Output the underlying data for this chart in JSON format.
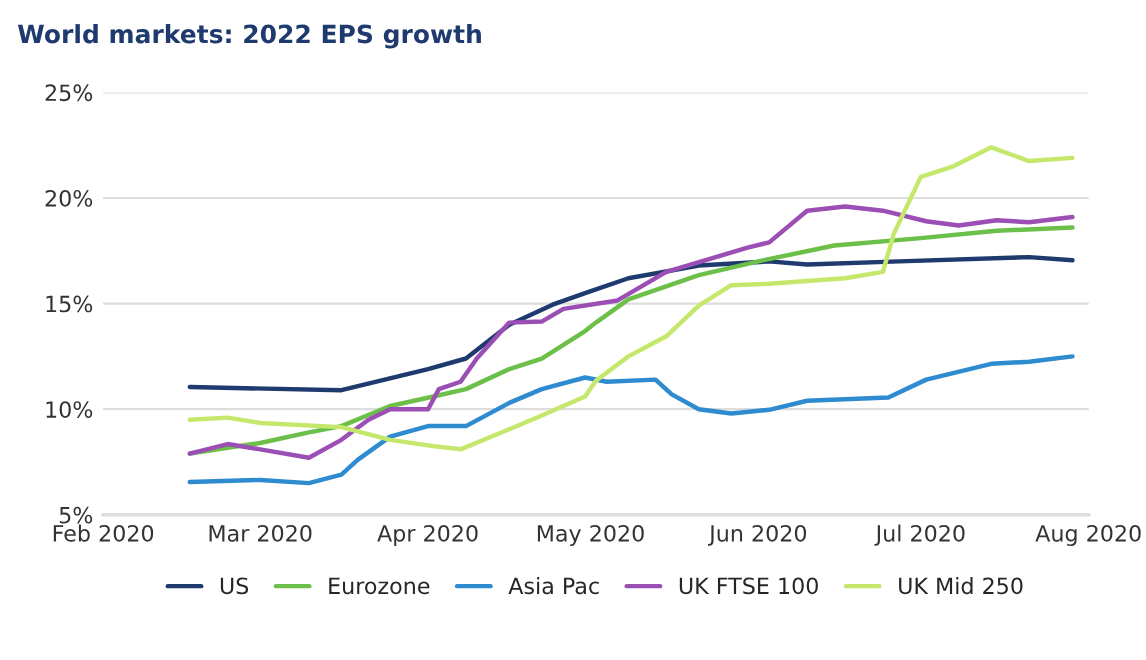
{
  "chart_data": {
    "type": "line",
    "title": "World markets: 2022 EPS growth",
    "xlim": [
      "2020-02-01",
      "2020-08-01"
    ],
    "xticks": [
      {
        "value": "2020-02-01",
        "label": "Feb 2020"
      },
      {
        "value": "2020-03-01",
        "label": "Mar 2020"
      },
      {
        "value": "2020-04-01",
        "label": "Apr 2020"
      },
      {
        "value": "2020-05-01",
        "label": "May 2020"
      },
      {
        "value": "2020-06-01",
        "label": "Jun 2020"
      },
      {
        "value": "2020-07-01",
        "label": "Jul 2020"
      },
      {
        "value": "2020-08-01",
        "label": "Aug 2020"
      }
    ],
    "ylim": [
      5,
      25
    ],
    "yticks": [
      {
        "value": 5,
        "label": "5%"
      },
      {
        "value": 10,
        "label": "10%"
      },
      {
        "value": 15,
        "label": "15%"
      },
      {
        "value": 20,
        "label": "20%"
      },
      {
        "value": 25,
        "label": "25%"
      }
    ],
    "grid": "y",
    "legend": "bottom",
    "marker": "none",
    "line_style": "solid",
    "series": [
      {
        "name": "US",
        "color": "#1f3a6e",
        "x": [
          "2020-02-17",
          "2020-03-16",
          "2020-04-01",
          "2020-04-08",
          "2020-04-16",
          "2020-04-24",
          "2020-04-30",
          "2020-05-08",
          "2020-05-21",
          "2020-06-03",
          "2020-06-10",
          "2020-06-27",
          "2020-07-21",
          "2020-07-29"
        ],
        "values": [
          11.05,
          10.9,
          11.9,
          12.4,
          14.0,
          14.95,
          15.5,
          16.2,
          16.8,
          17.0,
          16.85,
          17.0,
          17.2,
          17.05
        ]
      },
      {
        "name": "Eurozone",
        "color": "#6cc04a",
        "x": [
          "2020-02-17",
          "2020-03-01",
          "2020-03-10",
          "2020-03-16",
          "2020-03-25",
          "2020-04-02",
          "2020-04-08",
          "2020-04-16",
          "2020-04-22",
          "2020-04-30",
          "2020-05-02",
          "2020-05-08",
          "2020-05-21",
          "2020-06-01",
          "2020-06-15",
          "2020-07-01",
          "2020-07-15",
          "2020-07-29"
        ],
        "values": [
          7.9,
          8.4,
          8.9,
          9.2,
          10.15,
          10.6,
          10.95,
          11.9,
          12.4,
          13.7,
          14.1,
          15.2,
          16.35,
          17.0,
          17.75,
          18.1,
          18.45,
          18.6
        ]
      },
      {
        "name": "Asia Pac",
        "color": "#2e8bcf",
        "x": [
          "2020-02-17",
          "2020-03-01",
          "2020-03-10",
          "2020-03-16",
          "2020-03-19",
          "2020-03-25",
          "2020-04-01",
          "2020-04-08",
          "2020-04-16",
          "2020-04-22",
          "2020-04-30",
          "2020-05-04",
          "2020-05-13",
          "2020-05-16",
          "2020-05-21",
          "2020-05-27",
          "2020-06-03",
          "2020-06-10",
          "2020-06-25",
          "2020-07-02",
          "2020-07-14",
          "2020-07-21",
          "2020-07-29"
        ],
        "values": [
          6.55,
          6.65,
          6.5,
          6.9,
          7.6,
          8.7,
          9.2,
          9.2,
          10.3,
          10.95,
          11.5,
          11.3,
          11.4,
          10.7,
          10.0,
          9.8,
          9.97,
          10.4,
          10.55,
          11.4,
          12.15,
          12.25,
          12.5
        ]
      },
      {
        "name": "UK FTSE 100",
        "color": "#9b4fb5",
        "x": [
          "2020-02-17",
          "2020-02-24",
          "2020-03-01",
          "2020-03-10",
          "2020-03-16",
          "2020-03-21",
          "2020-03-25",
          "2020-04-01",
          "2020-04-03",
          "2020-04-07",
          "2020-04-10",
          "2020-04-16",
          "2020-04-22",
          "2020-04-26",
          "2020-05-06",
          "2020-05-15",
          "2020-05-30",
          "2020-06-03",
          "2020-06-10",
          "2020-06-17",
          "2020-06-24",
          "2020-07-02",
          "2020-07-08",
          "2020-07-15",
          "2020-07-21",
          "2020-07-29"
        ],
        "values": [
          7.9,
          8.35,
          8.1,
          7.7,
          8.55,
          9.5,
          10.0,
          10.0,
          10.95,
          11.3,
          12.4,
          14.1,
          14.15,
          14.75,
          15.15,
          16.5,
          17.65,
          17.9,
          19.4,
          19.6,
          19.4,
          18.9,
          18.7,
          18.95,
          18.85,
          19.1
        ]
      },
      {
        "name": "UK Mid 250",
        "color": "#c5e86c",
        "x": [
          "2020-02-17",
          "2020-02-24",
          "2020-03-01",
          "2020-03-16",
          "2020-03-25",
          "2020-04-02",
          "2020-04-07",
          "2020-04-16",
          "2020-04-22",
          "2020-04-30",
          "2020-05-02",
          "2020-05-08",
          "2020-05-15",
          "2020-05-21",
          "2020-05-27",
          "2020-06-03",
          "2020-06-17",
          "2020-06-24",
          "2020-06-26",
          "2020-07-01",
          "2020-07-07",
          "2020-07-14",
          "2020-07-21",
          "2020-07-29"
        ],
        "values": [
          9.5,
          9.6,
          9.35,
          9.15,
          8.55,
          8.25,
          8.1,
          9.05,
          9.7,
          10.6,
          11.35,
          12.5,
          13.45,
          14.9,
          15.87,
          15.94,
          16.2,
          16.5,
          18.3,
          21.0,
          21.5,
          22.4,
          21.75,
          21.9
        ]
      }
    ]
  }
}
